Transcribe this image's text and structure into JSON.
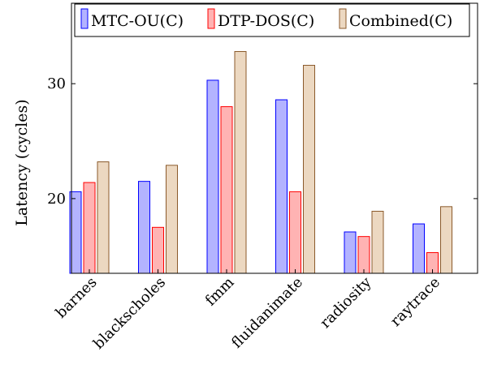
{
  "chart_data": {
    "type": "bar",
    "title": "",
    "xlabel": "",
    "ylabel": "Latency (cycles)",
    "ylim": [
      13.5,
      37
    ],
    "yticks": [
      20,
      30
    ],
    "categories": [
      "barnes",
      "blackscholes",
      "fmm",
      "fluidanimate",
      "radiosity",
      "raytrace"
    ],
    "series": [
      {
        "name": "MTC-OU(C)",
        "values": [
          20.6,
          21.5,
          30.3,
          28.6,
          17.1,
          17.8
        ],
        "fill": "#b3b3ff",
        "stroke": "#0000ff"
      },
      {
        "name": "DTP-DOS(C)",
        "values": [
          21.4,
          17.5,
          28.0,
          20.6,
          16.7,
          15.3
        ],
        "fill": "#ffb3b3",
        "stroke": "#ff0000"
      },
      {
        "name": "Combined(C)",
        "values": [
          23.2,
          22.9,
          32.8,
          31.6,
          18.9,
          19.3
        ],
        "fill": "#ecd8c1",
        "stroke": "#8b5a2b"
      }
    ],
    "legend_position": "top",
    "grid": false
  }
}
